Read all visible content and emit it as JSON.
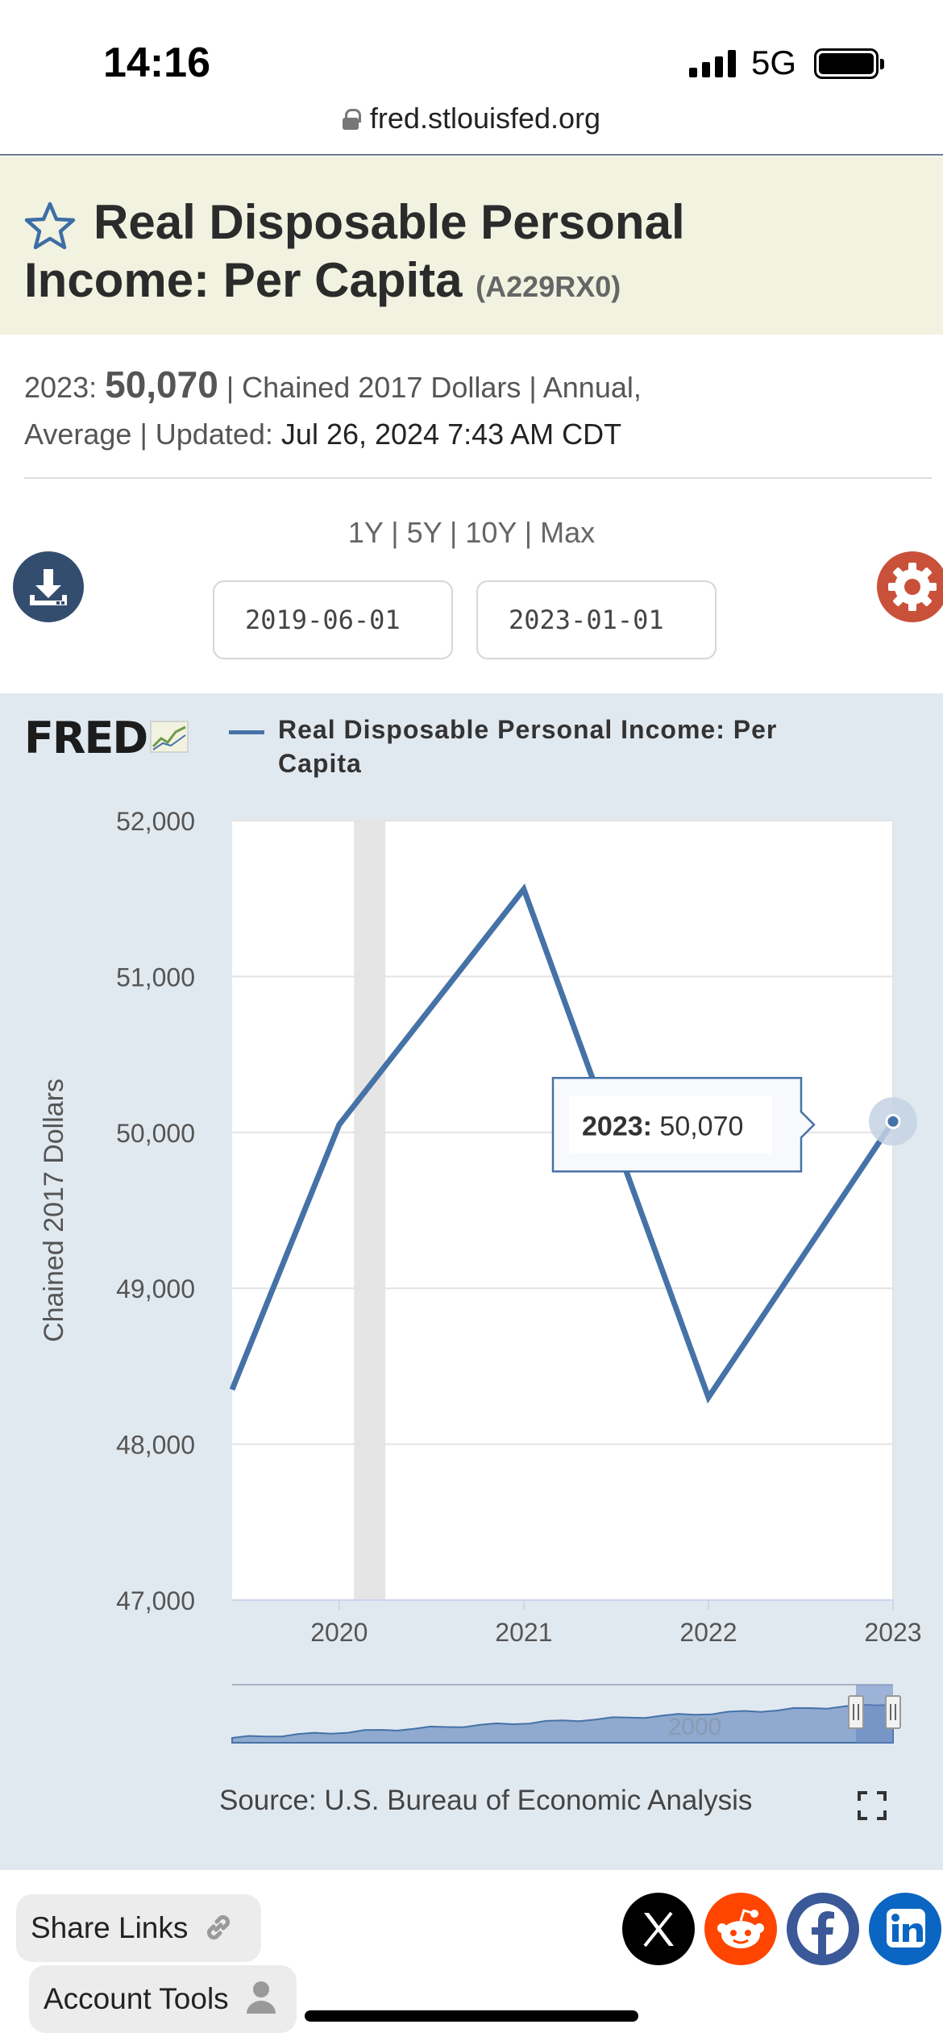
{
  "status_bar": {
    "time": "14:16",
    "network": "5G",
    "url": "fred.stlouisfed.org"
  },
  "header": {
    "title_line1": "Real Disposable Personal",
    "title_line2": "Income: Per Capita",
    "series_id": "(A229RX0)"
  },
  "meta": {
    "latest_label": "2023:",
    "latest_value": "50,070",
    "units_part": "| Chained 2017 Dollars | Annual,",
    "line2_prefix": "Average | Updated:",
    "updated": "Jul 26, 2024 7:43 AM CDT"
  },
  "range": {
    "options": [
      "1Y",
      "5Y",
      "10Y",
      "Max"
    ],
    "start_date": "2019-06-01",
    "end_date": "2023-01-01"
  },
  "chart_data": {
    "type": "line",
    "title": "",
    "legend": "Real Disposable Personal Income: Per Capita",
    "legend_line1": "Real Disposable Personal Income: Per",
    "legend_line2": "Capita",
    "logo": "FRED",
    "ylabel": "Chained 2017 Dollars",
    "xlabel": "",
    "x_start": 2019.42,
    "x": [
      2019.42,
      2020,
      2021,
      2022,
      2023
    ],
    "values": [
      48350,
      50050,
      51560,
      48300,
      50070
    ],
    "xlim": [
      2019.42,
      2023
    ],
    "ylim": [
      47000,
      52000
    ],
    "y_ticks": [
      47000,
      48000,
      49000,
      50000,
      51000,
      52000
    ],
    "y_tick_labels": [
      "47,000",
      "48,000",
      "49,000",
      "50,000",
      "51,000",
      "52,000"
    ],
    "x_ticks": [
      2020,
      2021,
      2022,
      2023
    ],
    "x_tick_labels": [
      "2020",
      "2021",
      "2022",
      "2023"
    ],
    "recession": [
      2020.08,
      2020.25
    ],
    "tooltip_label": "2023:",
    "tooltip_value": "50,070",
    "navigator_label": "2000",
    "source": "Source: U.S. Bureau of Economic Analysis",
    "line_color": "#4572a7"
  },
  "footer": {
    "share_label": "Share Links",
    "account_label": "Account Tools"
  }
}
